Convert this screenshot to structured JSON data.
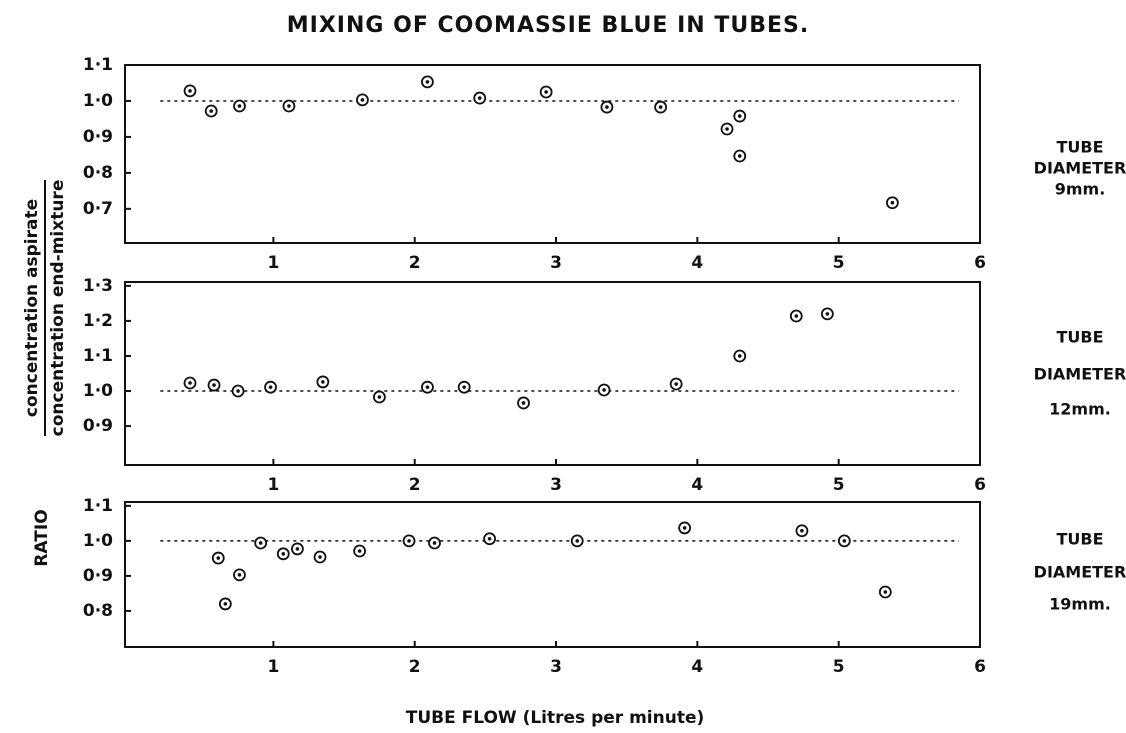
{
  "title": "MIXING OF COOMASSIE BLUE IN TUBES.",
  "xlabel": "TUBE FLOW (Litres per minute)",
  "ylabel": {
    "numerator": "concentration aspirate",
    "denominator": "concentration end-mixture",
    "ratio": "RATIO"
  },
  "chart_data": [
    {
      "type": "scatter",
      "label": [
        "TUBE",
        "DIAMETER",
        "9mm."
      ],
      "color": "#111111",
      "x": [
        0.41,
        0.56,
        0.76,
        1.11,
        1.63,
        2.09,
        2.46,
        2.93,
        3.36,
        3.74,
        4.21,
        4.3,
        4.3,
        5.38
      ],
      "values": [
        1.028,
        0.972,
        0.986,
        0.986,
        1.003,
        1.053,
        1.008,
        1.025,
        0.983,
        0.983,
        0.922,
        0.958,
        0.847,
        0.717
      ],
      "reference_line": 1,
      "xlim": [
        -0.05,
        6
      ],
      "xticks": [
        1,
        2,
        3,
        4,
        5,
        6
      ],
      "ylim": [
        0.605,
        1.1
      ],
      "yticks": [
        {
          "value": 0.7,
          "label": "0·7"
        },
        {
          "value": 0.8,
          "label": "0·8"
        },
        {
          "value": 0.9,
          "label": "0·9"
        },
        {
          "value": 1.0,
          "label": "1·0"
        },
        {
          "value": 1.1,
          "label": "1·1"
        }
      ]
    },
    {
      "type": "scatter",
      "label": [
        "TUBE",
        "DIAMETER",
        "12mm."
      ],
      "color": "#111111",
      "x": [
        0.41,
        0.58,
        0.75,
        0.98,
        1.35,
        1.75,
        2.09,
        2.35,
        2.77,
        3.34,
        3.85,
        4.3,
        4.7,
        4.92
      ],
      "values": [
        1.023,
        1.017,
        1.0,
        1.011,
        1.026,
        0.983,
        1.011,
        1.011,
        0.966,
        1.003,
        1.02,
        1.1,
        1.214,
        1.22
      ],
      "reference_line": 1,
      "xlim": [
        -0.05,
        6
      ],
      "xticks": [
        1,
        2,
        3,
        4,
        5,
        6
      ],
      "ylim": [
        0.789,
        1.311
      ],
      "yticks": [
        {
          "value": 0.9,
          "label": "0·9"
        },
        {
          "value": 1.0,
          "label": "1·0"
        },
        {
          "value": 1.1,
          "label": "1·1"
        },
        {
          "value": 1.2,
          "label": "1·2"
        },
        {
          "value": 1.3,
          "label": "1·3"
        }
      ]
    },
    {
      "type": "scatter",
      "label": [
        "TUBE",
        "DIAMETER",
        "19mm."
      ],
      "color": "#111111",
      "x": [
        0.61,
        0.66,
        0.76,
        0.91,
        1.07,
        1.17,
        1.33,
        1.61,
        1.96,
        2.14,
        2.53,
        3.15,
        3.91,
        4.74,
        5.04,
        5.33
      ],
      "values": [
        0.951,
        0.82,
        0.903,
        0.994,
        0.963,
        0.977,
        0.954,
        0.971,
        1.0,
        0.994,
        1.006,
        1.0,
        1.037,
        1.029,
        1.0,
        0.854
      ],
      "reference_line": 1,
      "xlim": [
        -0.05,
        6
      ],
      "xticks": [
        1,
        2,
        3,
        4,
        5,
        6
      ],
      "ylim": [
        0.697,
        1.111
      ],
      "yticks": [
        {
          "value": 0.8,
          "label": "0·8"
        },
        {
          "value": 0.9,
          "label": "0·9"
        },
        {
          "value": 1.0,
          "label": "1·0"
        },
        {
          "value": 1.1,
          "label": "1·1"
        }
      ]
    }
  ]
}
